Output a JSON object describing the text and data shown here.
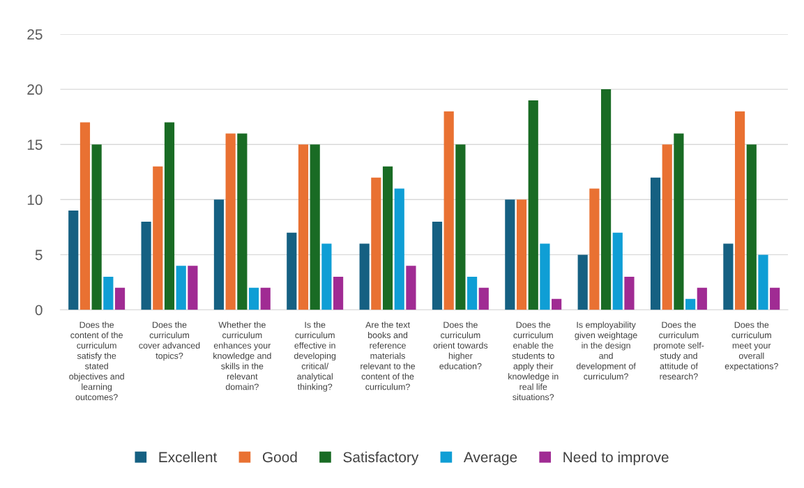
{
  "chart_data": {
    "type": "bar",
    "categories": [
      "Does the\ncontent of the\ncurriculum\nsatisfy the\nstated\nobjectives and\nlearning\noutcomes?",
      "Does the\ncurriculum\ncover advanced\ntopics?",
      "Whether the\ncurriculum\nenhances your\nknowledge and\nskills in the\nrelevant\ndomain?",
      "Is the\ncurriculum\neffective in\ndeveloping\ncritical/\nanalytical\nthinking?",
      "Are the text\nbooks and\nreference\nmaterials\nrelevant to the\ncontent of the\ncurriculum?",
      "Does the\ncurriculum\norient towards\nhigher\neducation?",
      "Does the\ncurriculum\nenable the\nstudents to\napply their\nknowledge in\nreal life\nsituations?",
      "Is employability\ngiven weightage\nin the design\nand\ndevelopment of\ncurriculum?",
      "Does the\ncurriculum\npromote self-\nstudy and\nattitude of\nresearch?",
      "Does the\ncurriculum\nmeet your\noverall\nexpectations?"
    ],
    "series": [
      {
        "name": "Excellent",
        "color": "#156082",
        "values": [
          9,
          8,
          10,
          7,
          6,
          8,
          10,
          5,
          12,
          6
        ]
      },
      {
        "name": "Good",
        "color": "#e97132",
        "values": [
          17,
          13,
          16,
          15,
          12,
          18,
          10,
          11,
          15,
          18
        ]
      },
      {
        "name": "Satisfactory",
        "color": "#196b24",
        "values": [
          15,
          17,
          16,
          15,
          13,
          15,
          19,
          20,
          16,
          15
        ]
      },
      {
        "name": "Average",
        "color": "#0f9ed5",
        "values": [
          3,
          4,
          2,
          6,
          11,
          3,
          6,
          7,
          1,
          5
        ]
      },
      {
        "name": "Need to improve",
        "color": "#a02b93",
        "values": [
          2,
          4,
          2,
          3,
          4,
          2,
          1,
          3,
          2,
          2
        ]
      }
    ],
    "ylim": [
      0,
      25
    ],
    "yticks": [
      0,
      5,
      10,
      15,
      20,
      25
    ],
    "grid": "y",
    "legend": "bottom"
  }
}
